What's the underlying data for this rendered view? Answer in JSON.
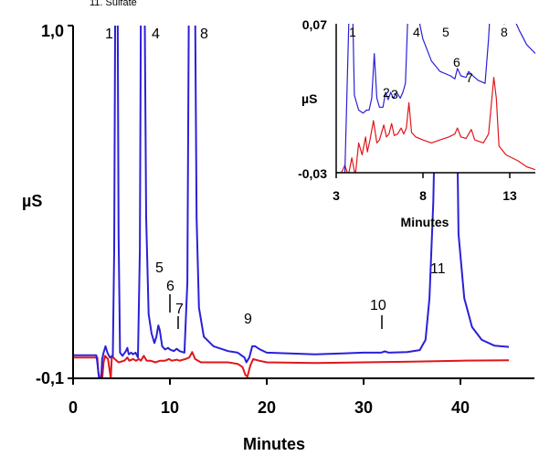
{
  "top_note": "11. Sulfate",
  "colors": {
    "blue": "#2b20d8",
    "red": "#e0161b",
    "axis": "#000000"
  },
  "chart_data": [
    {
      "type": "line",
      "xlabel": "Minutes",
      "ylabel": "µS",
      "xlim": [
        0,
        45
      ],
      "ylim": [
        -0.1,
        1.0
      ],
      "x_ticks": [
        "0",
        "10",
        "20",
        "30",
        "40"
      ],
      "y_ticks": [
        "1,0",
        "-0,1"
      ],
      "peak_labels": [
        {
          "text": "1",
          "x": 4.5
        },
        {
          "text": "4",
          "x": 7.8
        },
        {
          "text": "8",
          "x": 12.2
        },
        {
          "text": "5",
          "x": 8.8
        },
        {
          "text": "6",
          "x": 9.8
        },
        {
          "text": "7",
          "x": 10.9
        },
        {
          "text": "9",
          "x": 18.5
        },
        {
          "text": "10",
          "x": 32.0
        },
        {
          "text": "11",
          "x": 38.0
        }
      ],
      "series": [
        {
          "color": "blue",
          "points": [
            [
              0,
              -0.028
            ],
            [
              2.4,
              -0.028
            ],
            [
              2.5,
              -0.05
            ],
            [
              2.7,
              -0.105
            ],
            [
              2.9,
              -0.105
            ],
            [
              3.0,
              -0.04
            ],
            [
              3.15,
              -0.02
            ],
            [
              3.35,
              0.0
            ],
            [
              3.55,
              -0.02
            ],
            [
              3.8,
              -0.035
            ],
            [
              4.1,
              -0.03
            ],
            [
              4.25,
              0.3
            ],
            [
              4.35,
              1.05
            ],
            [
              4.6,
              1.05
            ],
            [
              4.7,
              0.35
            ],
            [
              4.85,
              -0.02
            ],
            [
              5.1,
              -0.03
            ],
            [
              5.45,
              -0.015
            ],
            [
              5.6,
              -0.005
            ],
            [
              5.75,
              -0.025
            ],
            [
              6.0,
              -0.02
            ],
            [
              6.2,
              -0.025
            ],
            [
              6.45,
              -0.02
            ],
            [
              6.7,
              -0.035
            ],
            [
              6.9,
              0.3
            ],
            [
              7.0,
              1.05
            ],
            [
              7.4,
              1.05
            ],
            [
              7.55,
              0.4
            ],
            [
              7.8,
              0.1
            ],
            [
              8.1,
              0.04
            ],
            [
              8.4,
              0.01
            ],
            [
              8.6,
              0.03
            ],
            [
              8.8,
              0.065
            ],
            [
              8.95,
              0.05
            ],
            [
              9.2,
              0.0
            ],
            [
              9.5,
              -0.01
            ],
            [
              9.8,
              -0.005
            ],
            [
              10.0,
              -0.01
            ],
            [
              10.4,
              -0.015
            ],
            [
              10.7,
              -0.008
            ],
            [
              11.0,
              -0.015
            ],
            [
              11.5,
              -0.02
            ],
            [
              11.8,
              0.2
            ],
            [
              11.95,
              1.05
            ],
            [
              12.6,
              1.05
            ],
            [
              12.75,
              0.4
            ],
            [
              13.0,
              0.12
            ],
            [
              13.5,
              0.03
            ],
            [
              14.5,
              0.0
            ],
            [
              16.0,
              -0.015
            ],
            [
              17.0,
              -0.02
            ],
            [
              17.7,
              -0.035
            ],
            [
              17.9,
              -0.05
            ],
            [
              18.2,
              -0.035
            ],
            [
              18.5,
              0.0
            ],
            [
              18.8,
              0.0
            ],
            [
              19.3,
              -0.01
            ],
            [
              20.0,
              -0.02
            ],
            [
              25.0,
              -0.025
            ],
            [
              30.0,
              -0.02
            ],
            [
              31.8,
              -0.02
            ],
            [
              32.2,
              -0.016
            ],
            [
              32.6,
              -0.02
            ],
            [
              34.5,
              -0.018
            ],
            [
              35.8,
              -0.012
            ],
            [
              36.4,
              0.02
            ],
            [
              36.8,
              0.15
            ],
            [
              37.2,
              0.45
            ],
            [
              37.6,
              1.05
            ],
            [
              39.5,
              1.05
            ],
            [
              39.8,
              0.35
            ],
            [
              40.4,
              0.15
            ],
            [
              41.2,
              0.06
            ],
            [
              42.2,
              0.02
            ],
            [
              43.5,
              0.002
            ],
            [
              45.0,
              -0.002
            ]
          ]
        },
        {
          "color": "red",
          "points": [
            [
              0,
              -0.035
            ],
            [
              2.5,
              -0.035
            ],
            [
              2.6,
              -0.08
            ],
            [
              2.8,
              -0.105
            ],
            [
              3.0,
              -0.105
            ],
            [
              3.15,
              -0.05
            ],
            [
              3.3,
              -0.03
            ],
            [
              3.6,
              -0.04
            ],
            [
              3.9,
              -0.1
            ],
            [
              4.0,
              -0.03
            ],
            [
              4.3,
              -0.04
            ],
            [
              4.7,
              -0.05
            ],
            [
              5.3,
              -0.045
            ],
            [
              5.6,
              -0.035
            ],
            [
              5.8,
              -0.045
            ],
            [
              6.2,
              -0.04
            ],
            [
              6.5,
              -0.045
            ],
            [
              6.8,
              -0.04
            ],
            [
              7.0,
              -0.045
            ],
            [
              7.3,
              -0.03
            ],
            [
              7.6,
              -0.045
            ],
            [
              8.0,
              -0.045
            ],
            [
              8.5,
              -0.05
            ],
            [
              9.0,
              -0.045
            ],
            [
              9.5,
              -0.045
            ],
            [
              9.9,
              -0.04
            ],
            [
              10.2,
              -0.045
            ],
            [
              10.7,
              -0.042
            ],
            [
              11.0,
              -0.045
            ],
            [
              11.6,
              -0.04
            ],
            [
              12.0,
              -0.035
            ],
            [
              12.3,
              -0.018
            ],
            [
              12.6,
              -0.04
            ],
            [
              13.2,
              -0.05
            ],
            [
              14.5,
              -0.05
            ],
            [
              16.0,
              -0.05
            ],
            [
              17.0,
              -0.055
            ],
            [
              17.5,
              -0.065
            ],
            [
              17.8,
              -0.09
            ],
            [
              18.0,
              -0.095
            ],
            [
              18.3,
              -0.06
            ],
            [
              18.6,
              -0.04
            ],
            [
              19.2,
              -0.045
            ],
            [
              20.0,
              -0.05
            ],
            [
              25.0,
              -0.052
            ],
            [
              30.0,
              -0.05
            ],
            [
              35.0,
              -0.048
            ],
            [
              40.0,
              -0.045
            ],
            [
              45.0,
              -0.044
            ]
          ]
        }
      ]
    },
    {
      "type": "line",
      "xlabel": "Minutes",
      "ylabel": "µS",
      "xlim": [
        3,
        14.5
      ],
      "ylim": [
        -0.03,
        0.07
      ],
      "x_ticks": [
        "3",
        "8",
        "13"
      ],
      "y_ticks": [
        "0,07",
        "-0,03"
      ],
      "peak_labels": [
        {
          "text": "1",
          "x": 4.1
        },
        {
          "text": "4",
          "x": 7.8
        },
        {
          "text": "5",
          "x": 9.0
        },
        {
          "text": "8",
          "x": 13.2
        },
        {
          "text": "6",
          "x": 10.0
        },
        {
          "text": "7",
          "x": 10.7
        },
        {
          "text": "2",
          "x": 5.9
        },
        {
          "text": "3",
          "x": 6.35
        }
      ],
      "series": [
        {
          "color": "blue",
          "points": [
            [
              3.0,
              -0.03
            ],
            [
              3.5,
              -0.03
            ],
            [
              3.75,
              0.08
            ],
            [
              3.95,
              0.08
            ],
            [
              4.05,
              0.022
            ],
            [
              4.3,
              0.012
            ],
            [
              4.55,
              0.01
            ],
            [
              4.75,
              0.012
            ],
            [
              4.9,
              0.012
            ],
            [
              5.05,
              0.02
            ],
            [
              5.2,
              0.05
            ],
            [
              5.35,
              0.02
            ],
            [
              5.5,
              0.014
            ],
            [
              5.7,
              0.014
            ],
            [
              5.85,
              0.024
            ],
            [
              6.0,
              0.019
            ],
            [
              6.15,
              0.024
            ],
            [
              6.3,
              0.02
            ],
            [
              6.5,
              0.024
            ],
            [
              6.7,
              0.02
            ],
            [
              6.85,
              0.024
            ],
            [
              7.0,
              0.03
            ],
            [
              7.15,
              0.08
            ],
            [
              7.65,
              0.08
            ],
            [
              8.0,
              0.06
            ],
            [
              8.5,
              0.045
            ],
            [
              9.0,
              0.038
            ],
            [
              9.6,
              0.035
            ],
            [
              9.85,
              0.033
            ],
            [
              10.0,
              0.04
            ],
            [
              10.2,
              0.035
            ],
            [
              10.5,
              0.034
            ],
            [
              10.65,
              0.038
            ],
            [
              10.8,
              0.036
            ],
            [
              11.2,
              0.032
            ],
            [
              11.6,
              0.03
            ],
            [
              11.8,
              0.06
            ],
            [
              11.9,
              0.08
            ],
            [
              12.2,
              0.08
            ],
            [
              12.7,
              0.07
            ],
            [
              13.2,
              0.075
            ],
            [
              13.6,
              0.065
            ],
            [
              14.0,
              0.056
            ],
            [
              14.5,
              0.05
            ]
          ]
        },
        {
          "color": "red",
          "points": [
            [
              3.0,
              -0.03
            ],
            [
              3.3,
              -0.03
            ],
            [
              3.5,
              -0.025
            ],
            [
              3.7,
              -0.032
            ],
            [
              3.9,
              -0.02
            ],
            [
              4.1,
              -0.032
            ],
            [
              4.3,
              -0.01
            ],
            [
              4.5,
              -0.018
            ],
            [
              4.7,
              -0.006
            ],
            [
              4.8,
              -0.016
            ],
            [
              4.95,
              -0.008
            ],
            [
              5.15,
              0.005
            ],
            [
              5.35,
              -0.01
            ],
            [
              5.5,
              -0.008
            ],
            [
              5.75,
              0.002
            ],
            [
              5.9,
              -0.006
            ],
            [
              6.05,
              -0.004
            ],
            [
              6.2,
              0.003
            ],
            [
              6.35,
              -0.005
            ],
            [
              6.55,
              -0.004
            ],
            [
              6.75,
              0.0
            ],
            [
              6.9,
              -0.004
            ],
            [
              7.05,
              0.0
            ],
            [
              7.2,
              0.017
            ],
            [
              7.35,
              -0.003
            ],
            [
              7.6,
              -0.006
            ],
            [
              8.0,
              -0.008
            ],
            [
              8.5,
              -0.01
            ],
            [
              9.0,
              -0.008
            ],
            [
              9.5,
              -0.006
            ],
            [
              9.85,
              -0.004
            ],
            [
              10.0,
              0.0
            ],
            [
              10.2,
              -0.006
            ],
            [
              10.5,
              -0.007
            ],
            [
              10.65,
              -0.004
            ],
            [
              10.8,
              -0.001
            ],
            [
              11.0,
              -0.008
            ],
            [
              11.5,
              -0.01
            ],
            [
              11.8,
              -0.004
            ],
            [
              11.95,
              0.015
            ],
            [
              12.1,
              0.034
            ],
            [
              12.25,
              0.02
            ],
            [
              12.4,
              -0.012
            ],
            [
              12.8,
              -0.018
            ],
            [
              13.5,
              -0.022
            ],
            [
              14.0,
              -0.026
            ],
            [
              14.5,
              -0.028
            ]
          ]
        }
      ]
    }
  ]
}
